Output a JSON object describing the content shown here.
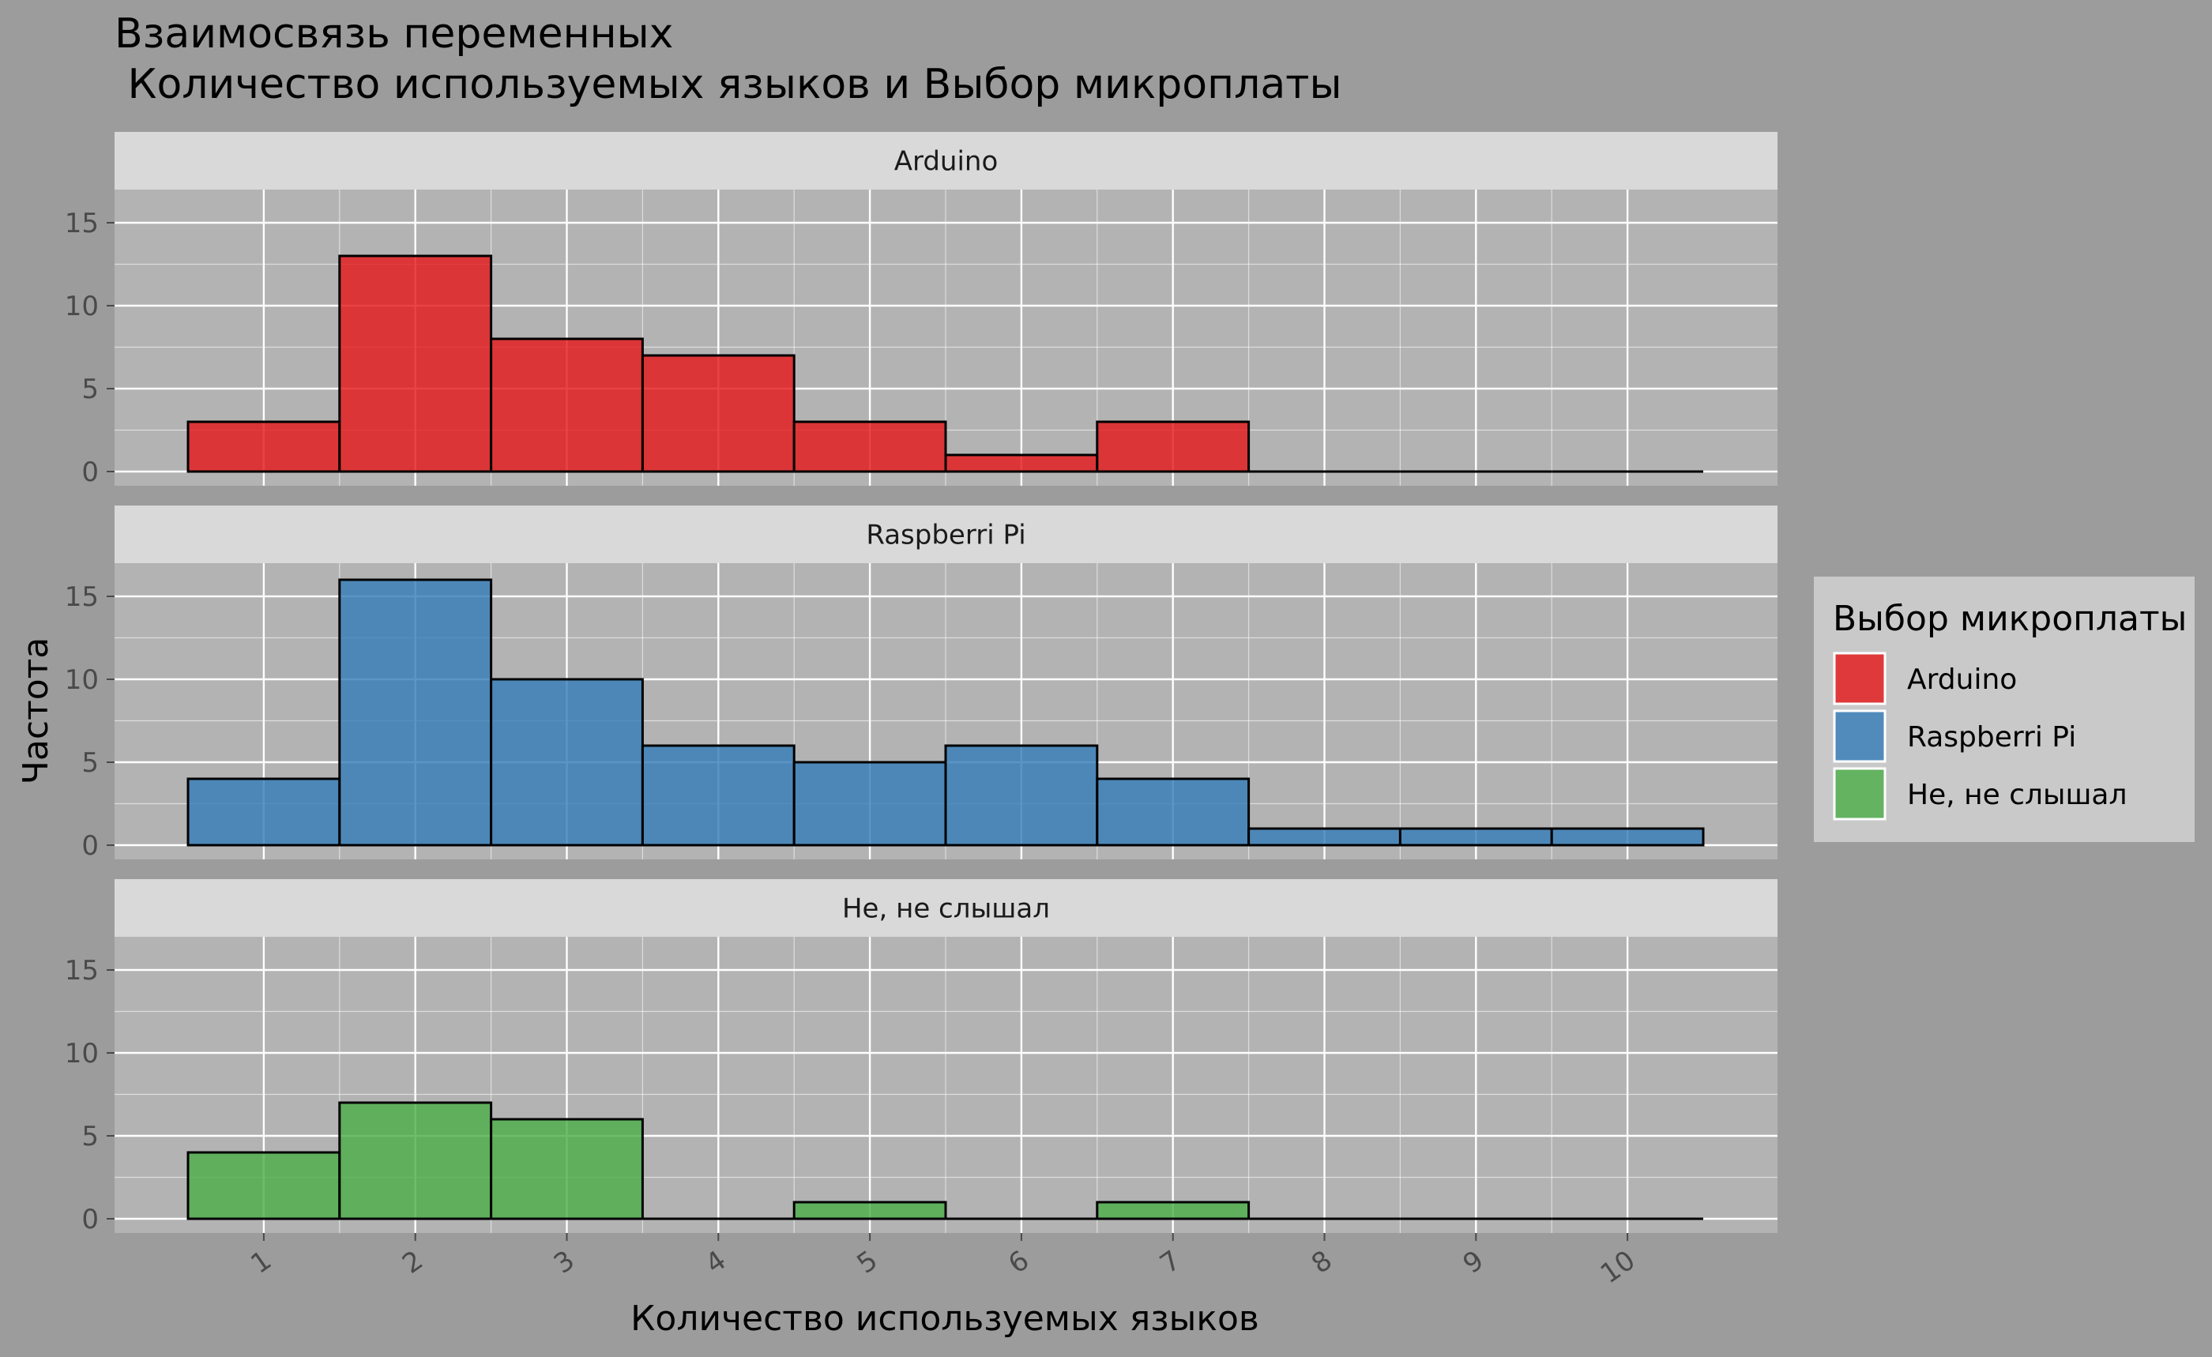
{
  "chart_data": {
    "type": "bar",
    "title": "Взаимосвязь переменных",
    "subtitle": " Количество используемых языков и Выбор микроплаты",
    "xlabel": "Количество используемых языков",
    "ylabel": "Частота",
    "x_ticks": [
      "1",
      "2",
      "3",
      "4",
      "5",
      "6",
      "7",
      "8",
      "9",
      "10"
    ],
    "y_ticks": [
      "0",
      "5",
      "10",
      "15"
    ],
    "ylim": [
      0,
      17
    ],
    "xlim": [
      0.5,
      10.5
    ],
    "grid": true,
    "legend": {
      "title": "Выбор микроплаты",
      "position": "right",
      "items": [
        "Arduino",
        "Raspberri Pi",
        "Не, не слышал"
      ]
    },
    "facets": [
      {
        "name": "Arduino",
        "color": "#e41a1c",
        "values": [
          3,
          13,
          8,
          7,
          3,
          1,
          3,
          0,
          0,
          0
        ]
      },
      {
        "name": "Raspberri Pi",
        "color": "#377eb8",
        "values": [
          4,
          16,
          10,
          6,
          5,
          6,
          4,
          1,
          1,
          1
        ]
      },
      {
        "name": "Не, не слышал",
        "color": "#4daf4a",
        "values": [
          4,
          7,
          6,
          0,
          1,
          0,
          1,
          0,
          0,
          0
        ]
      }
    ]
  },
  "colors": {
    "background": "#9c9c9c",
    "panel": "#b3b3b3",
    "strip": "#d9d9d9",
    "legend_box": "#c9c9c9",
    "grid": "#ffffff"
  }
}
